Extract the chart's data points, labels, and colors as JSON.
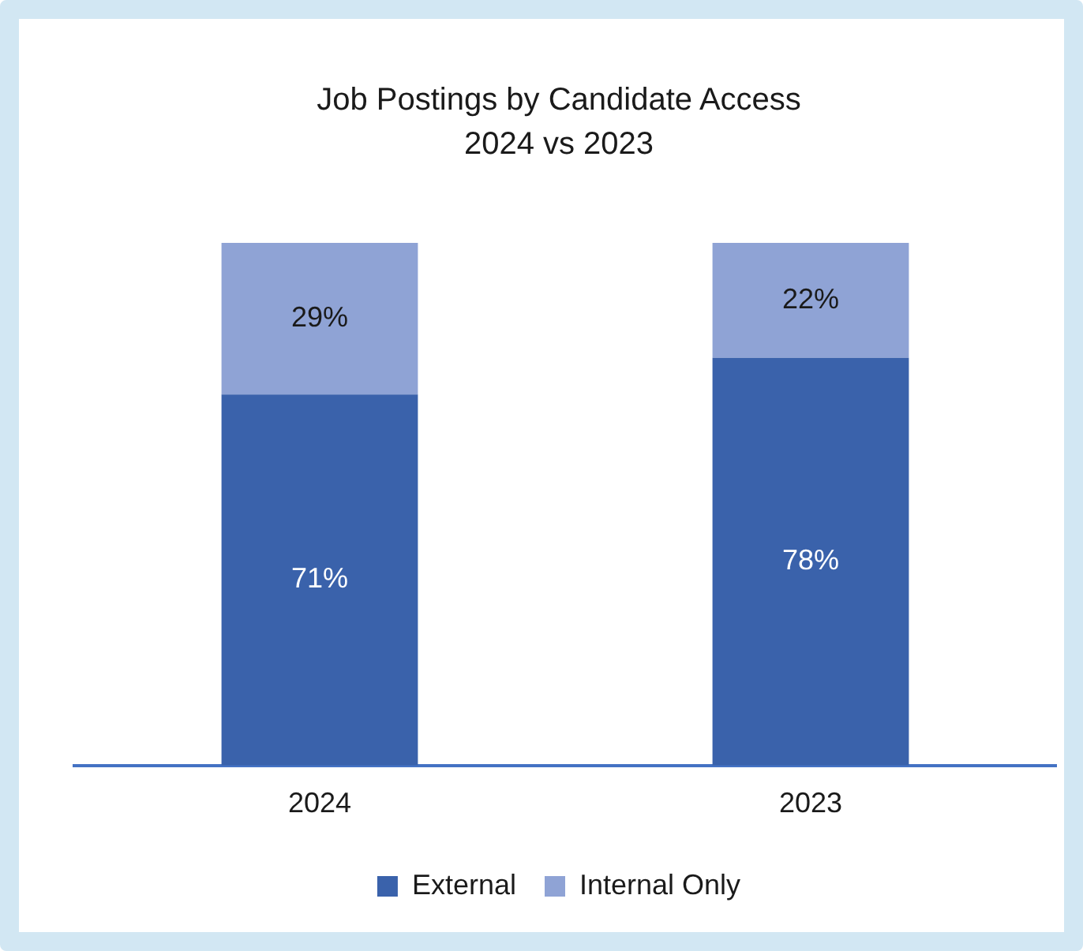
{
  "chart_data": {
    "type": "bar",
    "title": "Job Postings by Candidate Access",
    "subtitle": "2024 vs 2023",
    "categories": [
      "2024",
      "2023"
    ],
    "stacked": true,
    "ylim": [
      0,
      100
    ],
    "tick_labels": "x",
    "grid": false,
    "legend": "bottom",
    "series": [
      {
        "name": "External",
        "color": "#3a62ab",
        "values": [
          71,
          78
        ],
        "value_labels": [
          "71%",
          "78%"
        ]
      },
      {
        "name": "Internal Only",
        "color": "#8fa3d5",
        "values": [
          29,
          22
        ],
        "value_labels": [
          "29%",
          "22%"
        ]
      }
    ]
  }
}
